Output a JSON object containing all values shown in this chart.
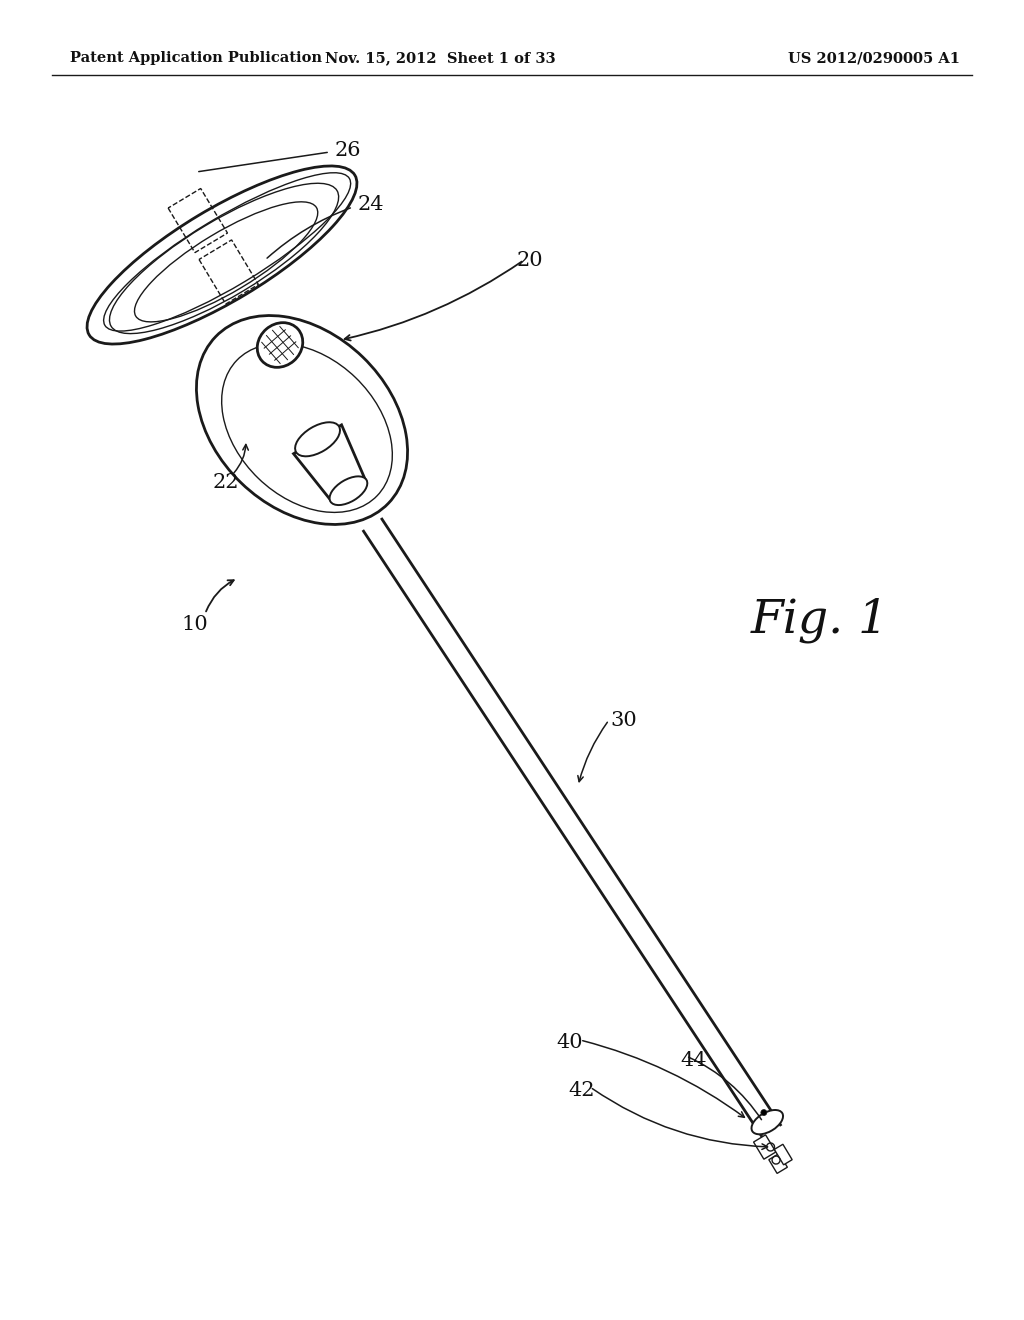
{
  "background_color": "#ffffff",
  "header_left": "Patent Application Publication",
  "header_mid": "Nov. 15, 2012  Sheet 1 of 33",
  "header_right": "US 2012/0290005 A1",
  "fig_label": "Fig. 1",
  "line_color": "#1a1a1a",
  "text_color": "#111111",
  "fig_width": 10.24,
  "fig_height": 13.2,
  "dpi": 100
}
